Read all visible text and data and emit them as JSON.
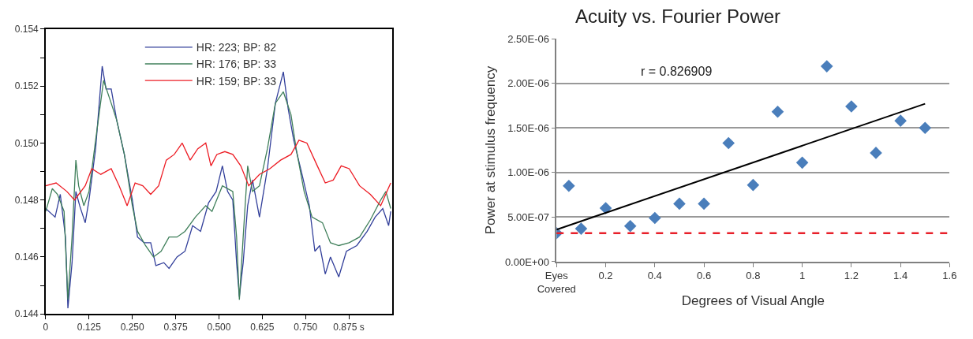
{
  "chart_data": [
    {
      "type": "line",
      "xlim": [
        0,
        1.0
      ],
      "ylim": [
        0.144,
        0.154
      ],
      "xticks": [
        0,
        0.125,
        {
          "value": 0.25,
          "label": "0.250"
        },
        0.375,
        {
          "value": 0.5,
          "label": "0.500"
        },
        0.625,
        {
          "value": 0.75,
          "label": "0.750"
        },
        {
          "value": 0.875,
          "label": "0.875 s"
        }
      ],
      "yticks": [
        0.144,
        {
          "value": 0.145,
          "label": null
        },
        0.146,
        {
          "value": 0.147,
          "label": null
        },
        0.148,
        {
          "value": 0.149,
          "label": null
        },
        {
          "value": 0.15,
          "label": "0.150"
        },
        {
          "value": 0.151,
          "label": null
        },
        0.152,
        {
          "value": 0.153,
          "label": null
        },
        0.154
      ],
      "grid": false,
      "legend": "top",
      "marker": "none",
      "line_style": "solid",
      "series": [
        {
          "name": "HR: 223; BP: 82",
          "color": "#323f9a",
          "x": [
            0,
            0.027,
            0.042,
            0.057,
            0.064,
            0.076,
            0.087,
            0.098,
            0.114,
            0.125,
            0.144,
            0.163,
            0.174,
            0.189,
            0.205,
            0.227,
            0.25,
            0.265,
            0.284,
            0.303,
            0.318,
            0.341,
            0.356,
            0.379,
            0.402,
            0.424,
            0.447,
            0.47,
            0.492,
            0.51,
            0.525,
            0.54,
            0.551,
            0.559,
            0.57,
            0.583,
            0.597,
            0.617,
            0.64,
            0.663,
            0.686,
            0.7,
            0.716,
            0.738,
            0.761,
            0.777,
            0.791,
            0.807,
            0.822,
            0.846,
            0.868,
            0.898,
            0.928,
            0.951,
            0.973,
            0.99,
            0.996
          ],
          "values": [
            0.1477,
            0.1474,
            0.1482,
            0.1467,
            0.1442,
            0.1458,
            0.1483,
            0.1478,
            0.1472,
            0.148,
            0.1498,
            0.1527,
            0.1519,
            0.1519,
            0.1508,
            0.1496,
            0.148,
            0.1467,
            0.1465,
            0.1465,
            0.1457,
            0.1458,
            0.1456,
            0.146,
            0.1462,
            0.1471,
            0.1469,
            0.1479,
            0.1483,
            0.1492,
            0.1483,
            0.148,
            0.1458,
            0.1446,
            0.1458,
            0.1478,
            0.1487,
            0.1474,
            0.1491,
            0.1514,
            0.1525,
            0.1512,
            0.1501,
            0.149,
            0.1478,
            0.1462,
            0.1464,
            0.1454,
            0.146,
            0.1453,
            0.1462,
            0.1464,
            0.1469,
            0.1474,
            0.1477,
            0.1471,
            0.1476
          ]
        },
        {
          "name": "HR: 176; BP: 33",
          "color": "#3f7f5a",
          "x": [
            0,
            0.019,
            0.034,
            0.053,
            0.064,
            0.076,
            0.087,
            0.095,
            0.11,
            0.125,
            0.144,
            0.167,
            0.189,
            0.205,
            0.227,
            0.25,
            0.265,
            0.288,
            0.311,
            0.333,
            0.356,
            0.379,
            0.402,
            0.432,
            0.462,
            0.48,
            0.51,
            0.54,
            0.551,
            0.559,
            0.57,
            0.583,
            0.597,
            0.617,
            0.64,
            0.663,
            0.686,
            0.708,
            0.723,
            0.746,
            0.769,
            0.799,
            0.822,
            0.846,
            0.876,
            0.906,
            0.937,
            0.967,
            0.982,
            0.996
          ],
          "values": [
            0.1476,
            0.1484,
            0.1482,
            0.1476,
            0.1445,
            0.1467,
            0.1494,
            0.1485,
            0.1478,
            0.1483,
            0.1501,
            0.1522,
            0.1514,
            0.1508,
            0.1496,
            0.1478,
            0.1469,
            0.1464,
            0.146,
            0.1462,
            0.1467,
            0.1467,
            0.1469,
            0.1474,
            0.1478,
            0.1476,
            0.1485,
            0.1483,
            0.1467,
            0.1445,
            0.1467,
            0.1492,
            0.1483,
            0.1485,
            0.1498,
            0.1514,
            0.1518,
            0.151,
            0.1498,
            0.1483,
            0.1474,
            0.1472,
            0.1465,
            0.1464,
            0.1465,
            0.1467,
            0.1473,
            0.148,
            0.1483,
            0.1477
          ]
        },
        {
          "name": "HR: 159; BP: 33",
          "color": "#ed1c24",
          "x": [
            0,
            0.03,
            0.061,
            0.083,
            0.114,
            0.133,
            0.159,
            0.189,
            0.212,
            0.235,
            0.258,
            0.28,
            0.303,
            0.326,
            0.348,
            0.371,
            0.394,
            0.417,
            0.439,
            0.462,
            0.477,
            0.494,
            0.517,
            0.54,
            0.563,
            0.586,
            0.617,
            0.647,
            0.678,
            0.708,
            0.731,
            0.754,
            0.784,
            0.807,
            0.83,
            0.853,
            0.876,
            0.906,
            0.937,
            0.967,
            0.996
          ],
          "values": [
            0.1485,
            0.1486,
            0.1483,
            0.148,
            0.1485,
            0.1491,
            0.1489,
            0.1491,
            0.1485,
            0.1478,
            0.1486,
            0.1485,
            0.1482,
            0.1485,
            0.1494,
            0.1496,
            0.15,
            0.1494,
            0.1498,
            0.15,
            0.1492,
            0.1496,
            0.1497,
            0.1496,
            0.1492,
            0.1485,
            0.1489,
            0.1491,
            0.1494,
            0.1496,
            0.1501,
            0.15,
            0.1492,
            0.1486,
            0.1487,
            0.1492,
            0.1491,
            0.1485,
            0.1482,
            0.1478,
            0.1486
          ]
        }
      ]
    },
    {
      "type": "scatter",
      "title": "Acuity vs. Fourier Power",
      "xlabel": "Degrees of Visual Angle",
      "ylabel": "Power at stimulus frequency",
      "xlim": [
        0,
        1.6
      ],
      "ylim": [
        0,
        2.5e-06
      ],
      "xticks": [
        {
          "value": 0,
          "label": "Eyes\nCovered"
        },
        0.2,
        0.4,
        0.6,
        0.8,
        1,
        1.2,
        1.4,
        1.6
      ],
      "yticks": [
        {
          "value": 0,
          "label": "0.00E+00"
        },
        {
          "value": 5e-07,
          "label": "5.00E-07"
        },
        {
          "value": 1e-06,
          "label": "1.00E-06"
        },
        {
          "value": 1.5e-06,
          "label": "1.50E-06"
        },
        {
          "value": 2e-06,
          "label": "2.00E-06"
        },
        {
          "value": 2.5e-06,
          "label": "2.50E-06"
        }
      ],
      "grid": "y",
      "legend": false,
      "marker": "diamond",
      "annotations": [
        "r = 0.826909"
      ],
      "ref_lines": [
        {
          "axis": "y",
          "value": 3.2e-07,
          "color": "#e8202a",
          "line_style": "dashed"
        }
      ],
      "series": [
        {
          "color": "#4a7ebb",
          "x": [
            0,
            0.05,
            0.1,
            0.2,
            0.3,
            0.4,
            0.5,
            0.6,
            0.7,
            0.8,
            0.9,
            1.0,
            1.1,
            1.2,
            1.3,
            1.4,
            1.5
          ],
          "values": [
            3.2e-07,
            8.5e-07,
            3.7e-07,
            6e-07,
            4e-07,
            4.9e-07,
            6.5e-07,
            6.5e-07,
            1.33e-06,
            8.6e-07,
            1.68e-06,
            1.11e-06,
            2.19e-06,
            1.74e-06,
            1.22e-06,
            1.58e-06,
            1.5e-06
          ]
        },
        {
          "type": "line",
          "marker": "none",
          "color": "#000000",
          "x": [
            0,
            1.5
          ],
          "values": [
            3.6e-07,
            1.77e-06
          ]
        }
      ]
    }
  ]
}
